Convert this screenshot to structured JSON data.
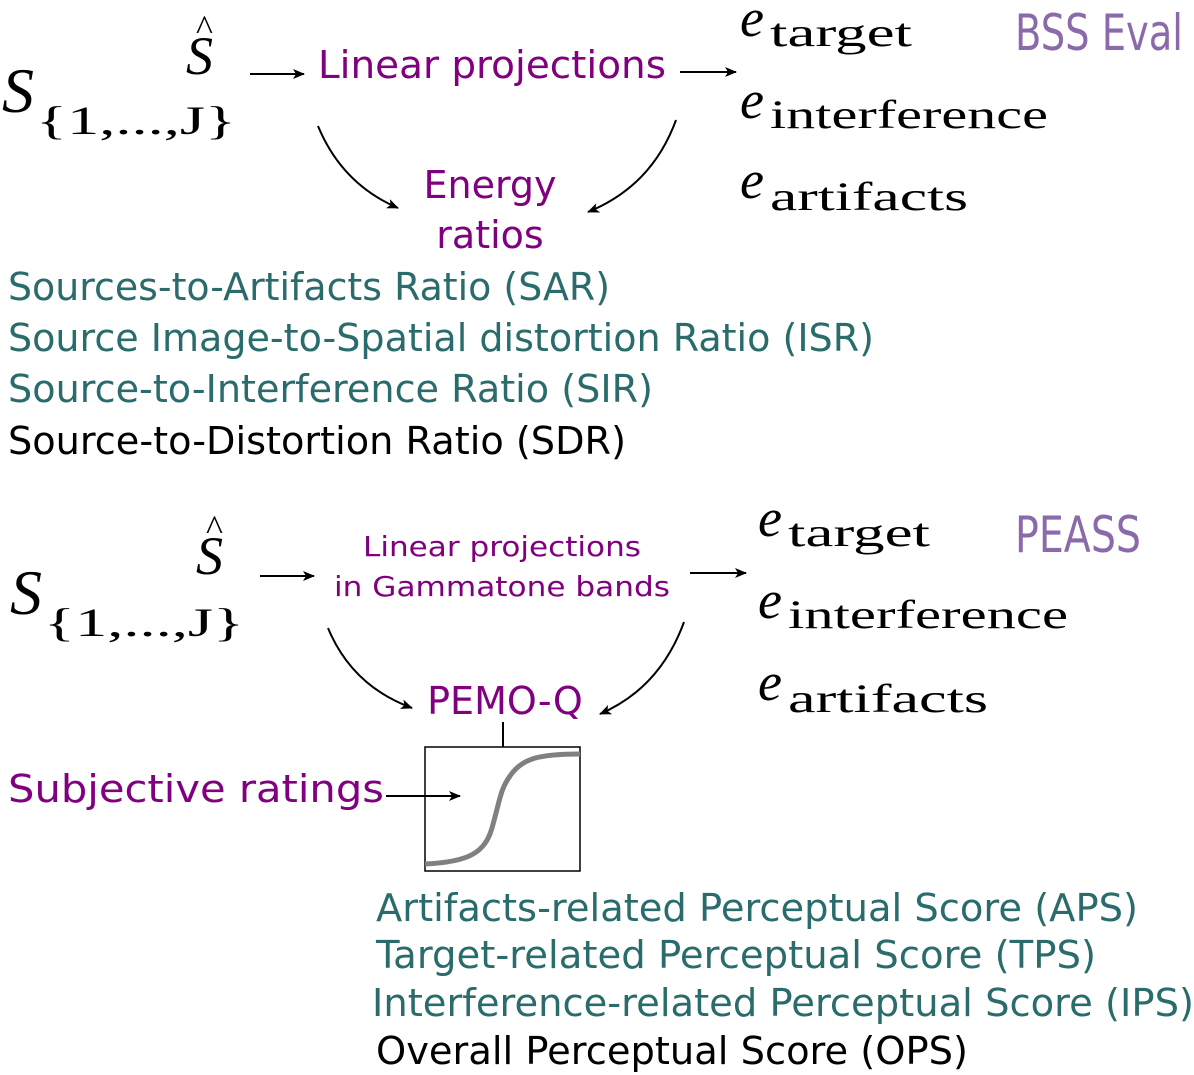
{
  "colors": {
    "purple": "#800080",
    "teal": "#2a6b6b",
    "black": "#000000",
    "lavender": "#8a6aaa",
    "curve": "#808080"
  },
  "bss": {
    "title": "BSS Eval",
    "shat": "S",
    "shat_hat": "^",
    "s_main": "S",
    "s_sub": "{1,...,J}",
    "process": "Linear projections",
    "e_base": "e",
    "e_target": "target",
    "e_interference": "interference",
    "e_artifacts": "artifacts",
    "energy_line1": "Energy",
    "energy_line2": "ratios",
    "metrics": [
      "Sources-to-Artifacts Ratio (SAR)",
      "Source Image-to-Spatial distortion Ratio (ISR)",
      "Source-to-Interference Ratio (SIR)",
      "Source-to-Distortion Ratio (SDR)"
    ]
  },
  "peass": {
    "title": "PEASS",
    "shat": "S",
    "shat_hat": "^",
    "s_main": "S",
    "s_sub": "{1,...,J}",
    "process_line1": "Linear projections",
    "process_line2": "in Gammatone bands",
    "e_base": "e",
    "e_target": "target",
    "e_interference": "interference",
    "e_artifacts": "artifacts",
    "pemo": "PEMO-Q",
    "subjective": "Subjective ratings",
    "metrics": [
      "Artifacts-related Perceptual Score (APS)",
      "Target-related Perceptual Score (TPS)",
      "Interference-related Perceptual Score (IPS)",
      "Overall Perceptual Score (OPS)"
    ]
  }
}
